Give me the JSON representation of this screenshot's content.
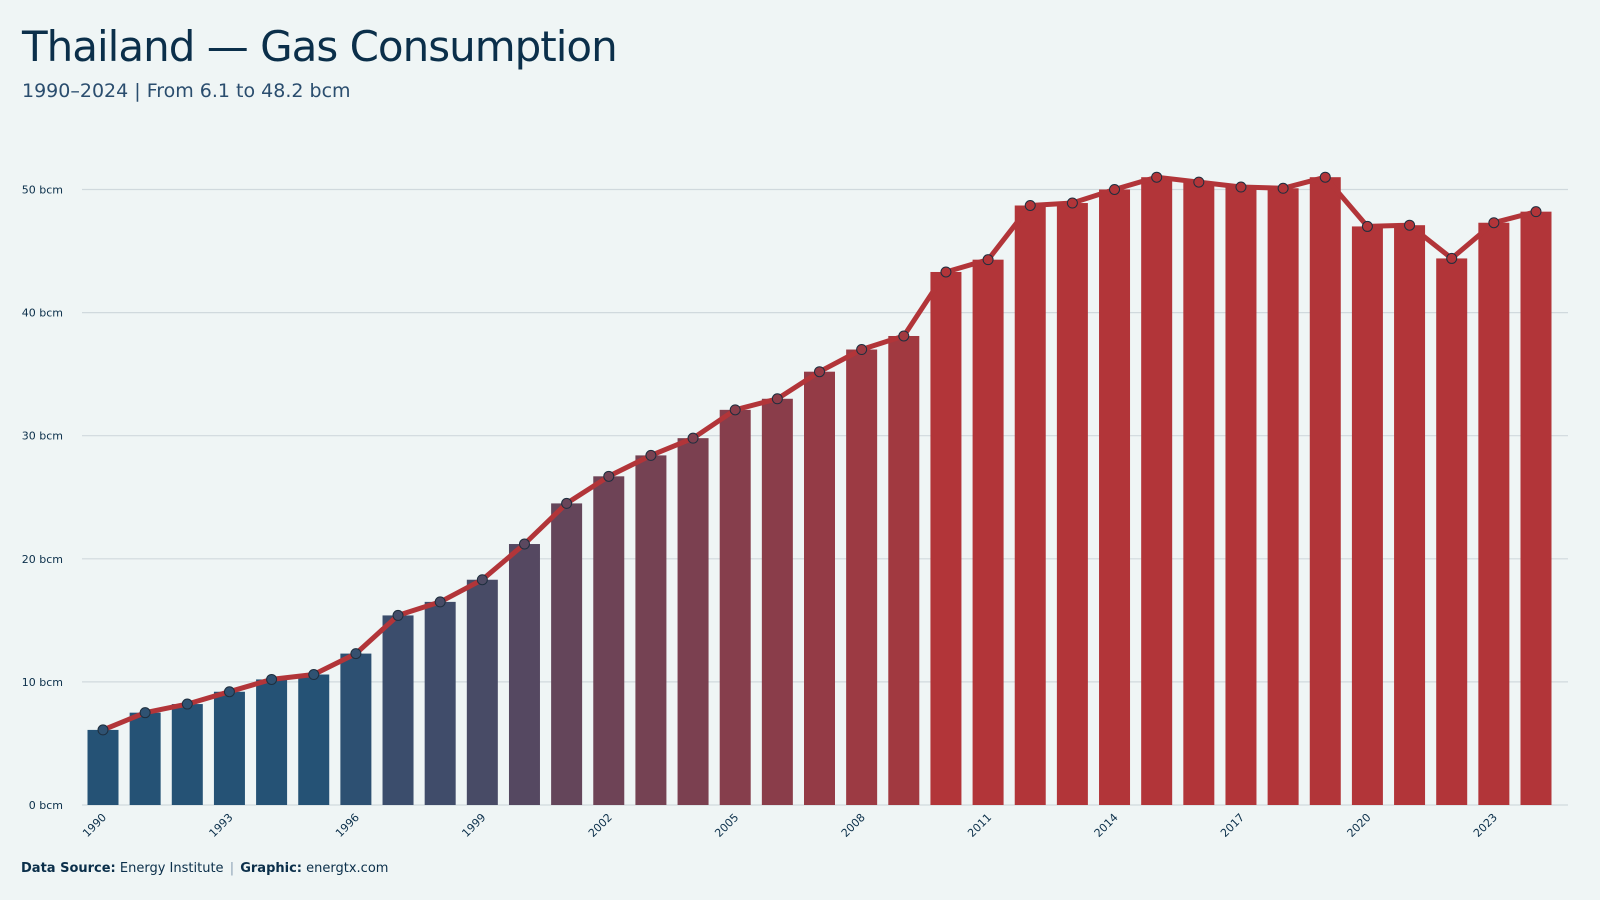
{
  "header": {
    "title": "Thailand — Gas Consumption",
    "subtitle": "1990–2024 | From 6.1 to 48.2 bcm"
  },
  "footer": {
    "source_label": "Data Source:",
    "source_value": "Energy Institute",
    "separator": "|",
    "graphic_label": "Graphic:",
    "graphic_value": "energtx.com"
  },
  "colors": {
    "background": "#eff5f5",
    "bar_start": "#255275",
    "bar_end": "#b23539",
    "line": "#b23539",
    "marker_start": "#2f5272",
    "marker_end": "#b23539",
    "grid": "#d0d9dd",
    "text": "#0b2f4a"
  },
  "chart_data": {
    "type": "bar",
    "x": [
      1990,
      1991,
      1992,
      1993,
      1994,
      1995,
      1996,
      1997,
      1998,
      1999,
      2000,
      2001,
      2002,
      2003,
      2004,
      2005,
      2006,
      2007,
      2008,
      2009,
      2010,
      2011,
      2012,
      2013,
      2014,
      2015,
      2016,
      2017,
      2018,
      2019,
      2020,
      2021,
      2022,
      2023,
      2024
    ],
    "values": [
      6.1,
      7.5,
      8.2,
      9.2,
      10.2,
      10.6,
      12.3,
      15.4,
      16.5,
      18.3,
      21.2,
      24.5,
      26.7,
      28.4,
      29.8,
      32.1,
      33.0,
      35.2,
      37.0,
      38.1,
      43.3,
      44.3,
      48.7,
      48.9,
      50.0,
      51.0,
      50.6,
      50.2,
      50.1,
      51.0,
      47.0,
      47.1,
      44.4,
      47.3,
      48.2
    ],
    "overlay_line": true,
    "ylim": [
      0,
      55
    ],
    "yticks": [
      0,
      10,
      20,
      30,
      40,
      50
    ],
    "ytick_unit": "bcm",
    "xtick_labels": [
      "1990",
      "1993",
      "1996",
      "1999",
      "2002",
      "2005",
      "2008",
      "2011",
      "2014",
      "2017",
      "2020",
      "2023"
    ],
    "grid": true,
    "legend": "none",
    "title": "Thailand — Gas Consumption",
    "subtitle": "1990–2024 | From 6.1 to 48.2 bcm"
  }
}
